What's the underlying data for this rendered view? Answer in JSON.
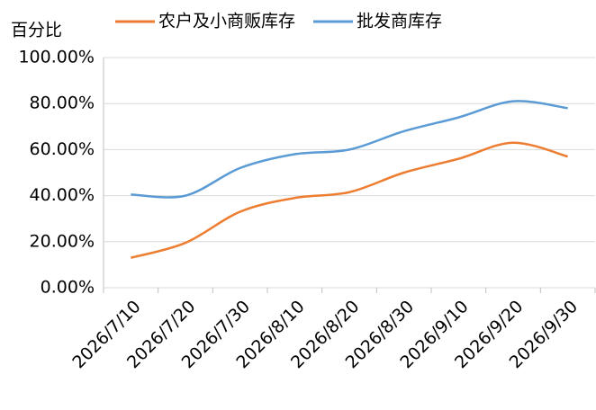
{
  "chart_data": {
    "type": "line",
    "y_axis_label": "百分比",
    "categories": [
      "2026/7/10",
      "2026/7/20",
      "2026/7/30",
      "2026/8/10",
      "2026/8/20",
      "2026/8/30",
      "2026/9/10",
      "2026/9/20",
      "2026/9/30"
    ],
    "series": [
      {
        "name": "农户及小商贩库存",
        "color": "#ed7d31",
        "values": [
          13,
          19.5,
          33,
          39,
          41.5,
          50,
          56,
          63,
          57
        ]
      },
      {
        "name": "批发商库存",
        "color": "#5b9bd5",
        "values": [
          40.5,
          40,
          52,
          58,
          60,
          68,
          74,
          81,
          78
        ]
      }
    ],
    "ylim": [
      0,
      100
    ],
    "yticks": [
      {
        "value": 0,
        "label": "0.00%"
      },
      {
        "value": 20,
        "label": "20.00%"
      },
      {
        "value": 40,
        "label": "40.00%"
      },
      {
        "value": 60,
        "label": "60.00%"
      },
      {
        "value": 80,
        "label": "80.00%"
      },
      {
        "value": 100,
        "label": "100.00%"
      }
    ],
    "grid": true,
    "legend": "top"
  }
}
